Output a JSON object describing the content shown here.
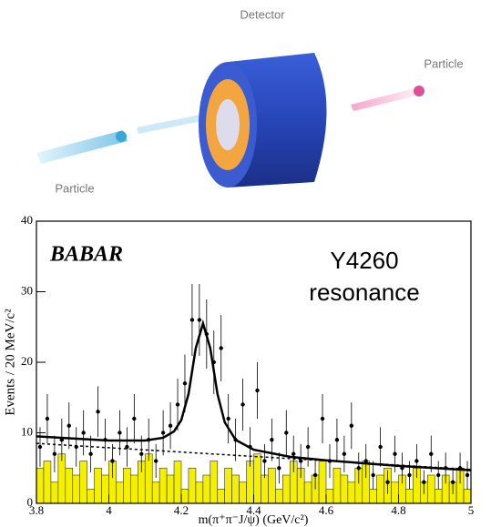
{
  "illustration": {
    "detector_label": "Detector",
    "particle_right_label": "Particle",
    "particle_left_label": "Particle"
  },
  "chart_data": {
    "type": "errorbar",
    "x_label": "m(π⁺π⁻J/ψ) (GeV/c²)",
    "y_label": "Events / 20 MeV/c²",
    "annotations": [
      "BABAR",
      "Y4260",
      "resonance"
    ],
    "xlim": [
      3.8,
      5
    ],
    "ylim": [
      0,
      40
    ],
    "xticks": [
      3.8,
      4,
      4.2,
      4.4,
      4.6,
      4.8,
      5
    ],
    "yticks": [
      0,
      10,
      20,
      30,
      40
    ],
    "x": [
      3.81,
      3.83,
      3.85,
      3.87,
      3.89,
      3.91,
      3.93,
      3.95,
      3.97,
      3.99,
      4.01,
      4.03,
      4.05,
      4.07,
      4.09,
      4.11,
      4.13,
      4.15,
      4.17,
      4.19,
      4.21,
      4.23,
      4.25,
      4.27,
      4.29,
      4.31,
      4.33,
      4.35,
      4.37,
      4.39,
      4.41,
      4.43,
      4.45,
      4.47,
      4.49,
      4.51,
      4.53,
      4.55,
      4.57,
      4.59,
      4.61,
      4.63,
      4.65,
      4.67,
      4.69,
      4.71,
      4.73,
      4.75,
      4.77,
      4.79,
      4.81,
      4.83,
      4.85,
      4.87,
      4.89,
      4.91,
      4.93,
      4.95,
      4.97,
      4.99
    ],
    "values": [
      8,
      12,
      7,
      9,
      11,
      8,
      10,
      7,
      13,
      9,
      6,
      10,
      8,
      12,
      7,
      9,
      6,
      10,
      11,
      14,
      17,
      26,
      26,
      24,
      20,
      22,
      12,
      9,
      14,
      8,
      16,
      6,
      9,
      5,
      10,
      7,
      6,
      8,
      4,
      12,
      6,
      9,
      7,
      11,
      5,
      6,
      4,
      8,
      3,
      7,
      5,
      4,
      6,
      3,
      7,
      4,
      5,
      3,
      5,
      4
    ],
    "errors": [
      2.8,
      3.5,
      2.6,
      3,
      3.3,
      2.8,
      3.2,
      2.6,
      3.6,
      3,
      2.4,
      3.2,
      2.8,
      3.5,
      2.6,
      3,
      2.4,
      3.2,
      3.3,
      3.7,
      4.1,
      5.1,
      5.1,
      4.9,
      4.5,
      4.7,
      3.5,
      3,
      3.7,
      2.8,
      4,
      2.4,
      3,
      2.2,
      3.2,
      2.6,
      2.4,
      2.8,
      2,
      3.5,
      2.4,
      3,
      2.6,
      3.3,
      2.2,
      2.4,
      2,
      2.8,
      1.7,
      2.6,
      2.2,
      2,
      2.4,
      1.7,
      2.6,
      2,
      2.2,
      1.7,
      2.2,
      2
    ],
    "fit": {
      "color": "#000000",
      "x": [
        3.8,
        3.9,
        4.0,
        4.1,
        4.15,
        4.18,
        4.2,
        4.22,
        4.24,
        4.26,
        4.28,
        4.3,
        4.32,
        4.35,
        4.4,
        4.5,
        4.6,
        4.7,
        4.8,
        4.9,
        5.0
      ],
      "values": [
        9.5,
        9.2,
        8.9,
        8.9,
        9.3,
        10.2,
        11.8,
        15.5,
        22,
        25.5,
        22,
        15.5,
        11.5,
        9,
        7.6,
        6.6,
        6.1,
        5.7,
        5.3,
        5,
        4.7
      ]
    },
    "background": {
      "color": "#000000",
      "x": [
        3.8,
        5
      ],
      "values": [
        8.5,
        4.8
      ]
    },
    "histogram": {
      "color": "#f5f000",
      "bins": [
        3.8,
        3.82,
        3.84,
        3.86,
        3.88,
        3.9,
        3.92,
        3.94,
        3.96,
        3.98,
        4.0,
        4.02,
        4.04,
        4.06,
        4.08,
        4.1,
        4.12,
        4.14,
        4.16,
        4.18,
        4.2,
        4.22,
        4.24,
        4.26,
        4.28,
        4.3,
        4.32,
        4.34,
        4.36,
        4.38,
        4.4,
        4.42,
        4.44,
        4.46,
        4.48,
        4.5,
        4.52,
        4.54,
        4.56,
        4.58,
        4.6,
        4.62,
        4.64,
        4.66,
        4.68,
        4.7,
        4.72,
        4.74,
        4.76,
        4.78,
        4.8,
        4.82,
        4.84,
        4.86,
        4.88,
        4.9,
        4.92,
        4.94,
        4.96,
        4.98,
        5.0
      ],
      "counts": [
        5,
        6,
        3,
        7,
        5,
        4,
        6,
        2,
        5,
        4,
        6,
        3,
        5,
        4,
        6,
        7,
        3,
        5,
        4,
        6,
        2,
        5,
        3,
        4,
        6,
        2,
        5,
        4,
        3,
        6,
        7,
        4,
        5,
        2,
        4,
        6,
        5,
        3,
        4,
        6,
        2,
        5,
        4,
        3,
        5,
        6,
        2,
        4,
        5,
        3,
        4,
        2,
        5,
        3,
        4,
        2,
        4,
        3,
        5,
        2
      ]
    }
  }
}
